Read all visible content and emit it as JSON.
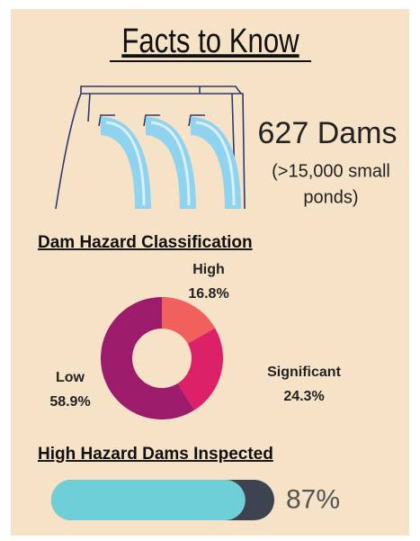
{
  "title": "Facts to Know",
  "dams": {
    "count_label": "627 Dams",
    "note_lines": [
      "(>15,000 small",
      "ponds)"
    ]
  },
  "chart_data": [
    {
      "type": "pie",
      "title": "Dam Hazard Classification",
      "categories": [
        "High",
        "Significant",
        "Low"
      ],
      "values": [
        16.8,
        24.3,
        58.9
      ],
      "value_labels": [
        "16.8%",
        "24.3%",
        "58.9%"
      ],
      "colors": [
        "#f0605d",
        "#dc2168",
        "#9c1c6b"
      ],
      "donut": true
    },
    {
      "type": "progress",
      "title": "High Hazard Dams Inspected",
      "values": [
        87
      ],
      "value_labels": [
        "87%"
      ],
      "xlim": [
        0,
        100
      ],
      "color": "#6ecfd9",
      "track_color": "#3d4450"
    }
  ]
}
